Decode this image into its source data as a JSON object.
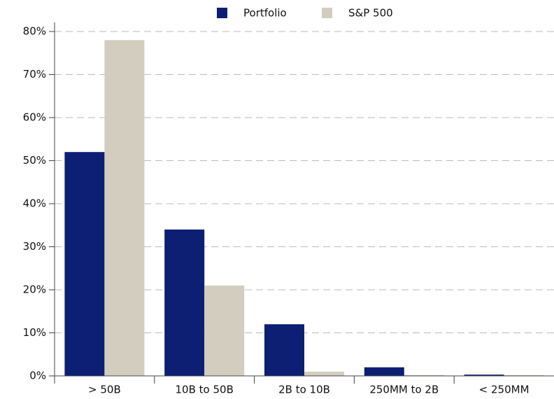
{
  "chart_data": {
    "type": "bar",
    "categories": [
      "> 50B",
      "10B to 50B",
      "2B to 10B",
      "250MM to 2B",
      "< 250MM"
    ],
    "series": [
      {
        "name": "Portfolio",
        "color": "#0d1f73",
        "values": [
          52,
          34,
          12,
          2,
          0.3
        ]
      },
      {
        "name": "S&P 500",
        "color": "#d3cdc0",
        "values": [
          78,
          21,
          1,
          0.2,
          0.2
        ]
      }
    ],
    "ylim": [
      0,
      80
    ],
    "yticks": [
      {
        "value": 0,
        "label": "0%"
      },
      {
        "value": 10,
        "label": "10%"
      },
      {
        "value": 20,
        "label": "20%"
      },
      {
        "value": 30,
        "label": "30%"
      },
      {
        "value": 40,
        "label": "40%"
      },
      {
        "value": 50,
        "label": "50%"
      },
      {
        "value": 60,
        "label": "60%"
      },
      {
        "value": 70,
        "label": "70%"
      },
      {
        "value": 80,
        "label": "80%"
      }
    ],
    "grid": true,
    "legend": "top"
  }
}
